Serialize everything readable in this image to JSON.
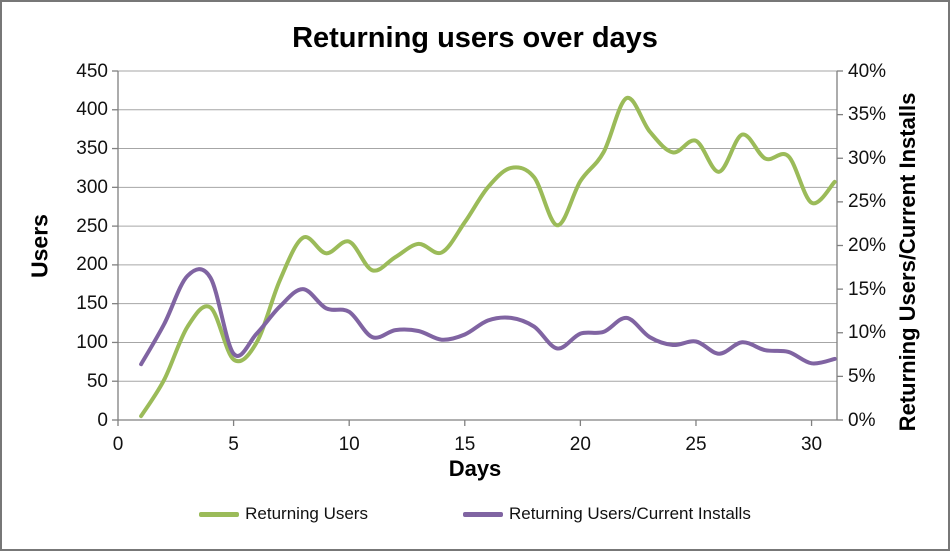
{
  "chart_data": {
    "type": "line",
    "title": "Returning users over days",
    "xlabel": "Days",
    "ylabel_left": "Users",
    "ylabel_right": "Returning Users/Current Installs",
    "grid": true,
    "legend_position": "bottom",
    "xlim": [
      0,
      31.1
    ],
    "ylim_left": [
      0,
      450
    ],
    "ylim_right_percent": [
      0,
      40
    ],
    "x_ticks": [
      0,
      5,
      10,
      15,
      20,
      25,
      30
    ],
    "y_left_ticks": [
      450,
      400,
      350,
      300,
      250,
      200,
      150,
      100,
      50,
      0
    ],
    "y_right_ticks": [
      "40%",
      "35%",
      "30%",
      "25%",
      "20%",
      "15%",
      "10%",
      "5%",
      "0%"
    ],
    "y_right_tick_values": [
      40,
      35,
      30,
      25,
      20,
      15,
      10,
      5,
      0
    ],
    "x": [
      1,
      2,
      3,
      4,
      5,
      6,
      7,
      8,
      9,
      10,
      11,
      12,
      13,
      14,
      15,
      16,
      17,
      18,
      19,
      20,
      21,
      22,
      23,
      24,
      25,
      26,
      27,
      28,
      29,
      30,
      31
    ],
    "series": [
      {
        "name": "Returning Users",
        "axis": "left",
        "color": "#9BBB59",
        "values": [
          5,
          52,
          120,
          145,
          78,
          100,
          180,
          235,
          215,
          230,
          193,
          210,
          227,
          216,
          255,
          300,
          325,
          313,
          251,
          308,
          345,
          415,
          372,
          345,
          360,
          320,
          368,
          337,
          340,
          280,
          307
        ]
      },
      {
        "name": "Returning Users/Current Installs",
        "axis": "right",
        "color": "#8064A2",
        "values_percent": [
          6.4,
          11,
          16.5,
          16.3,
          7.6,
          9.9,
          13,
          15,
          12.8,
          12.4,
          9.5,
          10.3,
          10.2,
          9.2,
          9.8,
          11.4,
          11.7,
          10.7,
          8.2,
          9.9,
          10.1,
          11.7,
          9.5,
          8.6,
          9.0,
          7.6,
          8.9,
          8.0,
          7.8,
          6.5,
          7.0
        ]
      }
    ],
    "colors": {
      "gridline": "#A6A6A6",
      "axis_line": "#808080",
      "text": "#111111",
      "frame_border": "#777777",
      "background": "#FFFFFF"
    }
  }
}
